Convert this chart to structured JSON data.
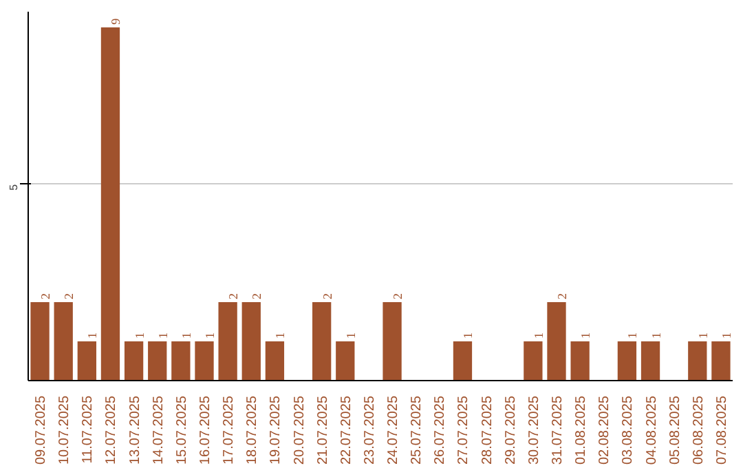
{
  "chart_data": {
    "type": "bar",
    "categories": [
      "09.07.2025",
      "10.07.2025",
      "11.07.2025",
      "12.07.2025",
      "13.07.2025",
      "14.07.2025",
      "15.07.2025",
      "16.07.2025",
      "17.07.2025",
      "18.07.2025",
      "19.07.2025",
      "20.07.2025",
      "21.07.2025",
      "22.07.2025",
      "23.07.2025",
      "24.07.2025",
      "25.07.2025",
      "26.07.2025",
      "27.07.2025",
      "28.07.2025",
      "29.07.2025",
      "30.07.2025",
      "31.07.2025",
      "01.08.2025",
      "02.08.2025",
      "03.08.2025",
      "04.08.2025",
      "05.08.2025",
      "06.08.2025",
      "07.08.2025"
    ],
    "values": [
      2,
      2,
      1,
      9,
      1,
      1,
      1,
      1,
      2,
      2,
      1,
      null,
      2,
      1,
      null,
      2,
      null,
      null,
      1,
      null,
      null,
      1,
      2,
      1,
      null,
      1,
      1,
      null,
      1,
      1
    ],
    "color": "#a0522d",
    "ylim": [
      0,
      9.4
    ],
    "yticks": [
      5
    ],
    "grid": "y",
    "data_labels": true
  }
}
